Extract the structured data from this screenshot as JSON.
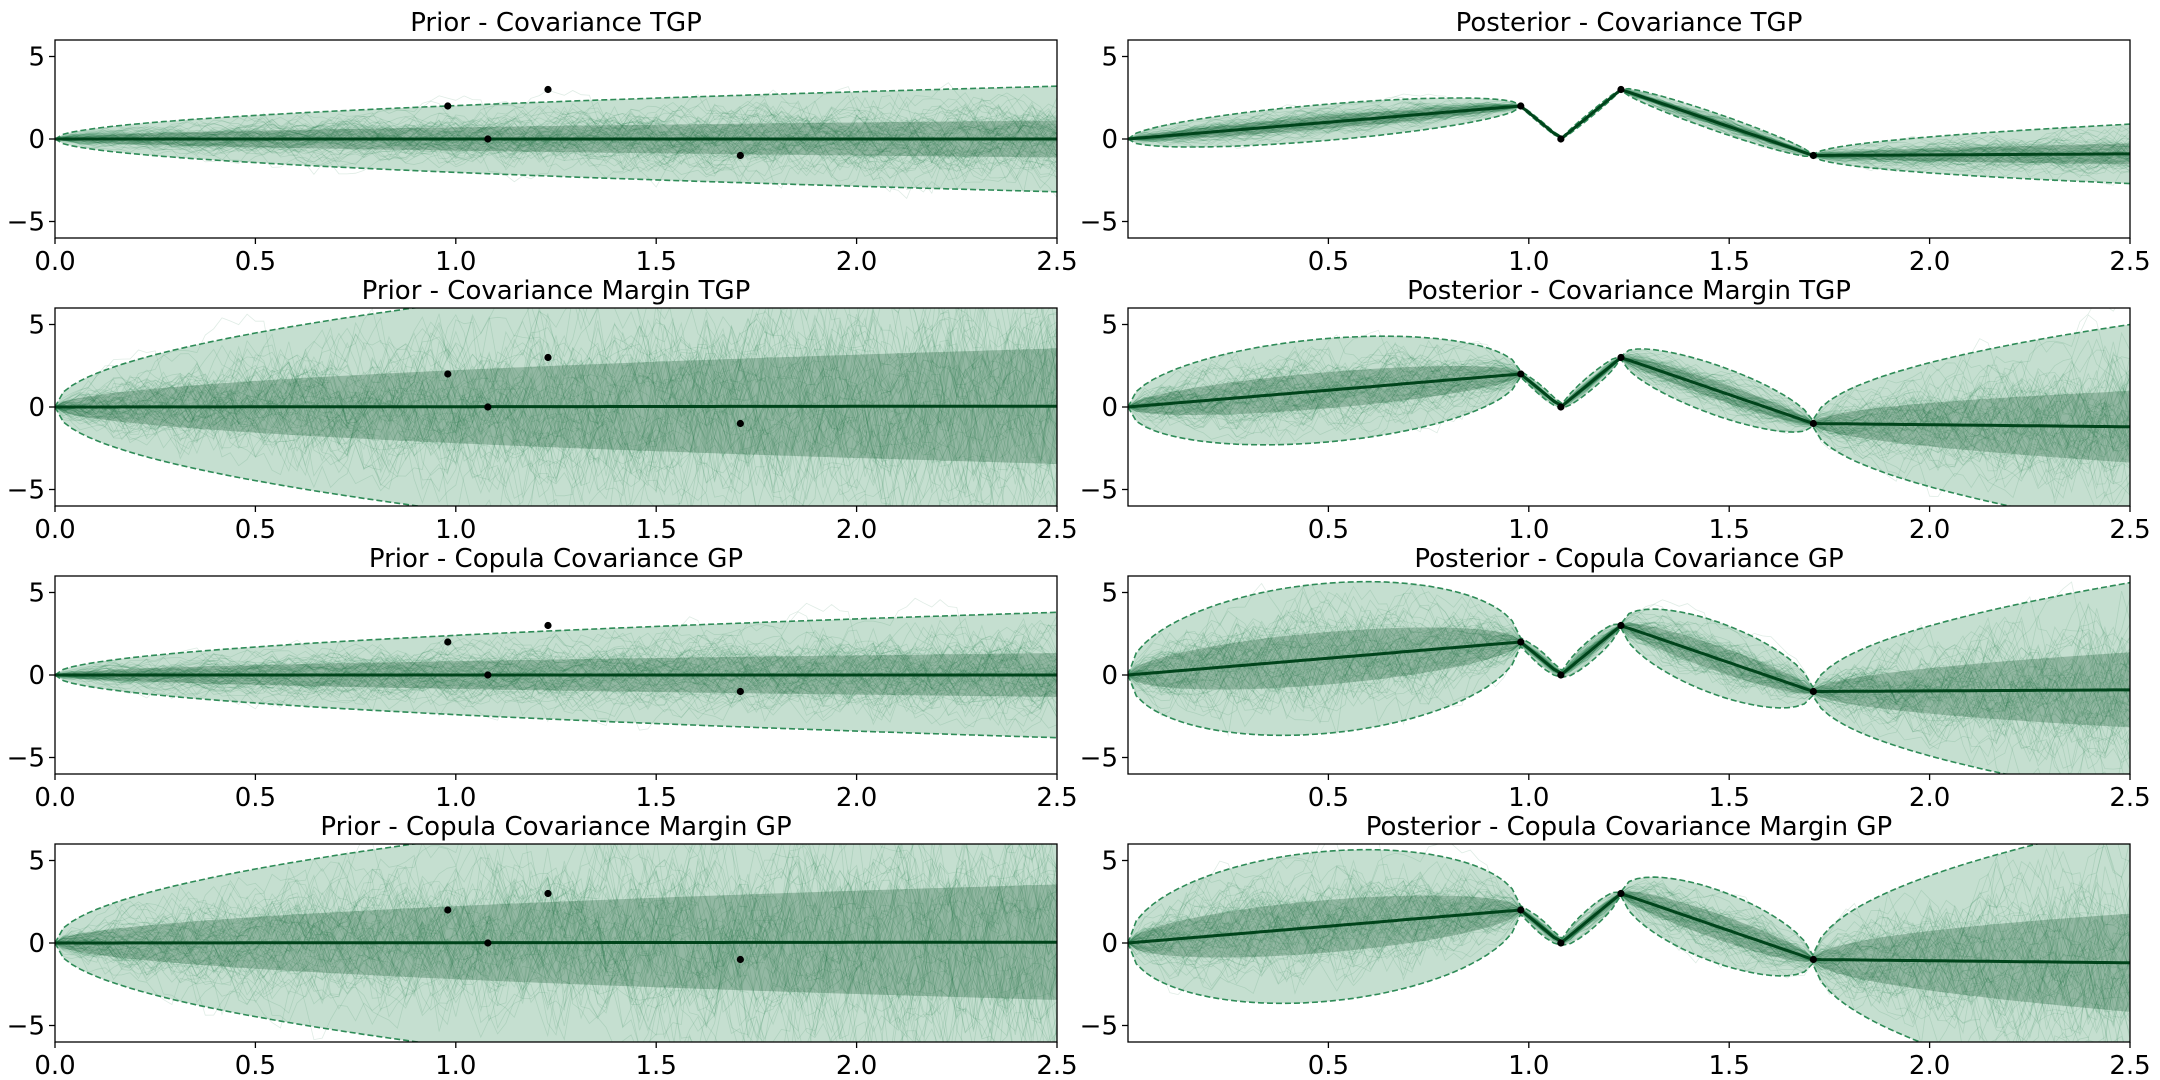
{
  "colors": {
    "band": "#2e8b57",
    "sample": "#1f7a4a",
    "mean": "#00441b",
    "point": "#000000",
    "axis": "#000000"
  },
  "chart_data": [
    {
      "id": "prior-covariance-tgp",
      "type": "line",
      "title": "Prior - Covariance TGP",
      "xlim": [
        0.0,
        2.5
      ],
      "ylim": [
        -6,
        6
      ],
      "xticks": [
        "0.0",
        "0.5",
        "1.0",
        "1.5",
        "2.0",
        "2.5"
      ],
      "yticks": [
        "−5",
        "0",
        "5"
      ],
      "kind": "prior",
      "max_band": 3.2,
      "observations": [
        [
          0.98,
          2
        ],
        [
          1.08,
          0
        ],
        [
          1.23,
          3
        ],
        [
          1.71,
          -1
        ]
      ],
      "mean": [
        [
          0,
          0
        ],
        [
          2.5,
          0
        ]
      ]
    },
    {
      "id": "posterior-covariance-tgp",
      "type": "line",
      "title": "Posterior - Covariance TGP",
      "xlim": [
        0.0,
        2.5
      ],
      "ylim": [
        -6,
        6
      ],
      "xticks": [
        "0.5",
        "1.0",
        "1.5",
        "2.0",
        "2.5"
      ],
      "yticks": [
        "−5",
        "0",
        "5"
      ],
      "kind": "posterior",
      "bulge": 0.35,
      "tail_band": 1.8,
      "observations": [
        [
          0.98,
          2
        ],
        [
          1.08,
          0
        ],
        [
          1.23,
          3
        ],
        [
          1.71,
          -1
        ]
      ],
      "mean": [
        [
          0,
          0
        ],
        [
          0.98,
          2
        ],
        [
          1.08,
          0
        ],
        [
          1.23,
          3
        ],
        [
          1.71,
          -1
        ],
        [
          2.5,
          -0.9
        ]
      ]
    },
    {
      "id": "prior-covariance-margin-tgp",
      "type": "line",
      "title": "Prior - Covariance Margin TGP",
      "xlim": [
        0.0,
        2.5
      ],
      "ylim": [
        -6,
        6
      ],
      "xticks": [
        "0.0",
        "0.5",
        "1.0",
        "1.5",
        "2.0",
        "2.5"
      ],
      "yticks": [
        "−5",
        "0",
        "5"
      ],
      "kind": "prior",
      "max_band": 10,
      "observations": [
        [
          0.98,
          2
        ],
        [
          1.08,
          0
        ],
        [
          1.23,
          3
        ],
        [
          1.71,
          -1
        ]
      ],
      "mean": [
        [
          0,
          0
        ],
        [
          2.5,
          0.05
        ]
      ]
    },
    {
      "id": "posterior-covariance-margin-tgp",
      "type": "line",
      "title": "Posterior - Covariance Margin TGP",
      "xlim": [
        0.0,
        2.5
      ],
      "ylim": [
        -6,
        6
      ],
      "xticks": [
        "0.5",
        "1.0",
        "1.5",
        "2.0",
        "2.5"
      ],
      "yticks": [
        "−5",
        "0",
        "5"
      ],
      "kind": "posterior",
      "bulge": 1.0,
      "tail_band": 6.2,
      "observations": [
        [
          0.98,
          2
        ],
        [
          1.08,
          0
        ],
        [
          1.23,
          3
        ],
        [
          1.71,
          -1
        ]
      ],
      "mean": [
        [
          0,
          0
        ],
        [
          0.98,
          2
        ],
        [
          1.08,
          0
        ],
        [
          1.23,
          3
        ],
        [
          1.71,
          -1
        ],
        [
          2.5,
          -1.2
        ]
      ]
    },
    {
      "id": "prior-copula-covariance-gp",
      "type": "line",
      "title": "Prior - Copula Covariance GP",
      "xlim": [
        0.0,
        2.5
      ],
      "ylim": [
        -6,
        6
      ],
      "xticks": [
        "0.0",
        "0.5",
        "1.0",
        "1.5",
        "2.0",
        "2.5"
      ],
      "yticks": [
        "−5",
        "0",
        "5"
      ],
      "kind": "prior",
      "max_band": 3.8,
      "observations": [
        [
          0.98,
          2
        ],
        [
          1.08,
          0
        ],
        [
          1.23,
          3
        ],
        [
          1.71,
          -1
        ]
      ],
      "mean": [
        [
          0,
          0
        ],
        [
          2.5,
          0
        ]
      ]
    },
    {
      "id": "posterior-copula-covariance-gp",
      "type": "line",
      "title": "Posterior - Copula Covariance GP",
      "xlim": [
        0.0,
        2.5
      ],
      "ylim": [
        -6,
        6
      ],
      "xticks": [
        "0.5",
        "1.0",
        "1.5",
        "2.0",
        "2.5"
      ],
      "yticks": [
        "−5",
        "0",
        "5"
      ],
      "kind": "posterior",
      "bulge": 1.45,
      "tail_band": 6.5,
      "observations": [
        [
          0.98,
          2
        ],
        [
          1.08,
          0
        ],
        [
          1.23,
          3
        ],
        [
          1.71,
          -1
        ]
      ],
      "mean": [
        [
          0,
          0
        ],
        [
          0.98,
          2
        ],
        [
          1.08,
          0
        ],
        [
          1.23,
          3
        ],
        [
          1.71,
          -1
        ],
        [
          2.5,
          -0.9
        ]
      ]
    },
    {
      "id": "prior-copula-covariance-margin-gp",
      "type": "line",
      "title": "Prior - Copula Covariance Margin GP",
      "xlim": [
        0.0,
        2.5
      ],
      "ylim": [
        -6,
        6
      ],
      "xticks": [
        "0.0",
        "0.5",
        "1.0",
        "1.5",
        "2.0",
        "2.5"
      ],
      "yticks": [
        "−5",
        "0",
        "5"
      ],
      "kind": "prior",
      "max_band": 10,
      "observations": [
        [
          0.98,
          2
        ],
        [
          1.08,
          0
        ],
        [
          1.23,
          3
        ],
        [
          1.71,
          -1
        ]
      ],
      "mean": [
        [
          0,
          0
        ],
        [
          2.5,
          0.05
        ]
      ]
    },
    {
      "id": "posterior-copula-covariance-margin-gp",
      "type": "line",
      "title": "Posterior - Copula Covariance Margin GP",
      "xlim": [
        0.0,
        2.5
      ],
      "ylim": [
        -6,
        6
      ],
      "xticks": [
        "0.5",
        "1.0",
        "1.5",
        "2.0",
        "2.5"
      ],
      "yticks": [
        "−5",
        "0",
        "5"
      ],
      "kind": "posterior",
      "bulge": 1.45,
      "tail_band": 8.5,
      "observations": [
        [
          0.98,
          2
        ],
        [
          1.08,
          0
        ],
        [
          1.23,
          3
        ],
        [
          1.71,
          -1
        ]
      ],
      "mean": [
        [
          0,
          0
        ],
        [
          0.98,
          2
        ],
        [
          1.08,
          0
        ],
        [
          1.23,
          3
        ],
        [
          1.71,
          -1
        ],
        [
          2.5,
          -1.2
        ]
      ]
    }
  ]
}
